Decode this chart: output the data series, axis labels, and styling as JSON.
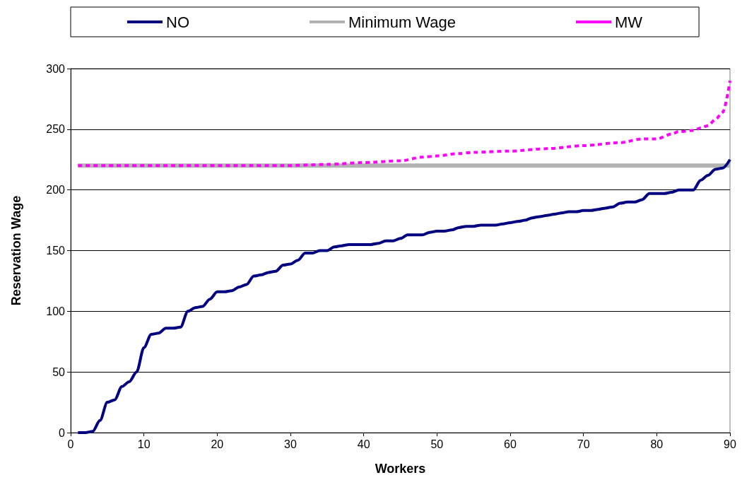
{
  "chart_data": {
    "type": "line",
    "xlabel": "Workers",
    "ylabel": "Reservation Wage",
    "x": [
      1,
      2,
      3,
      4,
      5,
      6,
      7,
      8,
      9,
      10,
      11,
      12,
      13,
      14,
      15,
      16,
      17,
      18,
      19,
      20,
      21,
      22,
      23,
      24,
      25,
      26,
      27,
      28,
      29,
      30,
      31,
      32,
      33,
      34,
      35,
      36,
      37,
      38,
      39,
      40,
      41,
      42,
      43,
      44,
      45,
      46,
      47,
      48,
      49,
      50,
      51,
      52,
      53,
      54,
      55,
      56,
      57,
      58,
      59,
      60,
      61,
      62,
      63,
      64,
      65,
      66,
      67,
      68,
      69,
      70,
      71,
      72,
      73,
      74,
      75,
      76,
      77,
      78,
      79,
      80,
      81,
      82,
      83,
      84,
      85,
      86,
      87,
      88,
      89,
      90
    ],
    "series": [
      {
        "name": "NO",
        "color": "#000080",
        "line_style": "solid",
        "values": [
          0,
          0,
          1,
          10,
          25,
          27,
          38,
          42,
          50,
          70,
          81,
          82,
          86,
          86,
          87,
          100,
          103,
          104,
          110,
          116,
          116,
          117,
          120,
          122,
          129,
          130,
          132,
          133,
          138,
          139,
          142,
          148,
          148,
          150,
          150,
          153,
          154,
          155,
          155,
          155,
          155,
          156,
          158,
          158,
          160,
          163,
          163,
          163,
          165,
          166,
          166,
          167,
          169,
          170,
          170,
          171,
          171,
          171,
          172,
          173,
          174,
          175,
          177,
          178,
          179,
          180,
          181,
          182,
          182,
          183,
          183,
          184,
          185,
          186,
          189,
          190,
          190,
          192,
          197,
          197,
          197,
          198,
          200,
          200,
          200,
          208,
          212,
          217,
          218,
          225
        ]
      },
      {
        "name": "Minimum Wage",
        "color": "#b2b2b2",
        "line_style": "solid",
        "x": [
          1,
          90
        ],
        "values": [
          220,
          220
        ]
      },
      {
        "name": "MW",
        "color": "#ff00ff",
        "line_style": "dashed",
        "x": [
          1,
          29,
          35,
          40,
          45,
          48,
          50,
          53,
          55,
          60,
          65,
          70,
          75,
          78,
          80,
          82,
          83,
          85,
          86,
          87,
          88,
          89,
          90
        ],
        "values": [
          220,
          220,
          221,
          222.5,
          224,
          227,
          228,
          230,
          231,
          232,
          234,
          236.5,
          239,
          242,
          242,
          246,
          248,
          249,
          251,
          253,
          258,
          264,
          290
        ]
      }
    ],
    "xlim": [
      0,
      90
    ],
    "xticks": [
      0,
      10,
      20,
      30,
      40,
      50,
      60,
      70,
      80,
      90
    ],
    "ylim": [
      0,
      300
    ],
    "yticks": [
      0,
      50,
      100,
      150,
      200,
      250,
      300
    ],
    "grid": "y",
    "legend": "top",
    "marker": "none"
  }
}
